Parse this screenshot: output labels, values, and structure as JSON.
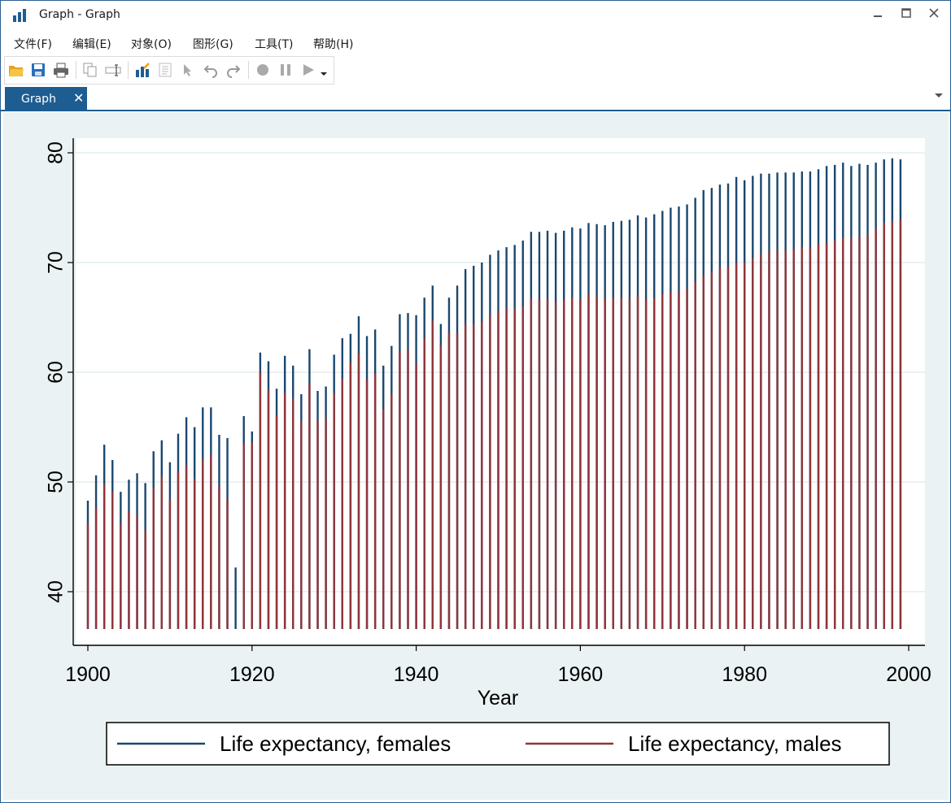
{
  "window": {
    "title": "Graph - Graph",
    "controls": {
      "minimize": "—",
      "maximize": "☐",
      "close": "✕"
    }
  },
  "menu": [
    {
      "label": "文件(F)",
      "name": "menu-file"
    },
    {
      "label": "编辑(E)",
      "name": "menu-edit"
    },
    {
      "label": "对象(O)",
      "name": "menu-object"
    },
    {
      "label": "图形(G)",
      "name": "menu-graph"
    },
    {
      "label": "工具(T)",
      "name": "menu-tools"
    },
    {
      "label": "帮助(H)",
      "name": "menu-help"
    }
  ],
  "toolbar": [
    "open-icon",
    "save-icon",
    "print-icon",
    "copy-icon",
    "rename-icon",
    "graph-editor-icon",
    "properties-icon",
    "pointer-icon",
    "undo-icon",
    "redo-icon",
    "record-icon",
    "pause-icon",
    "play-icon",
    "dropdown-icon"
  ],
  "tab": {
    "label": "Graph",
    "close": "✕"
  },
  "colors": {
    "females": "#1a476f",
    "males": "#90353b",
    "plot_bg": "#ffffff",
    "graph_bg": "#eaf2f3",
    "grid": "#eaf2f3",
    "accent": "#1e5d91"
  },
  "chart_data": {
    "type": "bar",
    "xlabel": "Year",
    "ylabel": "",
    "xlim": [
      1900,
      2000
    ],
    "ylim": [
      36.6,
      80
    ],
    "xticks": [
      1900,
      1920,
      1940,
      1960,
      1980,
      2000
    ],
    "yticks": [
      40,
      50,
      60,
      70,
      80
    ],
    "legend_position": "bottom",
    "baseline": 36.6,
    "x": [
      1900,
      1901,
      1902,
      1903,
      1904,
      1905,
      1906,
      1907,
      1908,
      1909,
      1910,
      1911,
      1912,
      1913,
      1914,
      1915,
      1916,
      1917,
      1918,
      1919,
      1920,
      1921,
      1922,
      1923,
      1924,
      1925,
      1926,
      1927,
      1928,
      1929,
      1930,
      1931,
      1932,
      1933,
      1934,
      1935,
      1936,
      1937,
      1938,
      1939,
      1940,
      1941,
      1942,
      1943,
      1944,
      1945,
      1946,
      1947,
      1948,
      1949,
      1950,
      1951,
      1952,
      1953,
      1954,
      1955,
      1956,
      1957,
      1958,
      1959,
      1960,
      1961,
      1962,
      1963,
      1964,
      1965,
      1966,
      1967,
      1968,
      1969,
      1970,
      1971,
      1972,
      1973,
      1974,
      1975,
      1976,
      1977,
      1978,
      1979,
      1980,
      1981,
      1982,
      1983,
      1984,
      1985,
      1986,
      1987,
      1988,
      1989,
      1990,
      1991,
      1992,
      1993,
      1994,
      1995,
      1996,
      1997,
      1998,
      1999
    ],
    "series": [
      {
        "name": "Life expectancy, females",
        "values": [
          48.3,
          50.6,
          53.4,
          52.0,
          49.1,
          50.2,
          50.8,
          49.9,
          52.8,
          53.8,
          51.8,
          54.4,
          55.9,
          55.0,
          56.8,
          56.8,
          54.3,
          54.0,
          42.2,
          56.0,
          54.6,
          61.8,
          61.0,
          58.5,
          61.5,
          60.6,
          58.0,
          62.1,
          58.3,
          58.7,
          61.6,
          63.1,
          63.5,
          65.1,
          63.3,
          63.9,
          60.6,
          62.4,
          65.3,
          65.4,
          65.2,
          66.8,
          67.9,
          64.4,
          66.8,
          67.9,
          69.4,
          69.7,
          70.0,
          70.7,
          71.1,
          71.4,
          71.6,
          72.0,
          72.8,
          72.8,
          72.9,
          72.7,
          72.9,
          73.2,
          73.1,
          73.6,
          73.5,
          73.4,
          73.7,
          73.8,
          73.9,
          74.3,
          74.1,
          74.4,
          74.7,
          75.0,
          75.1,
          75.3,
          75.9,
          76.6,
          76.8,
          77.1,
          77.2,
          77.8,
          77.5,
          77.9,
          78.1,
          78.1,
          78.2,
          78.2,
          78.2,
          78.3,
          78.3,
          78.5,
          78.8,
          78.9,
          79.1,
          78.8,
          79.0,
          78.9,
          79.1,
          79.4,
          79.5,
          79.4
        ]
      },
      {
        "name": "Life expectancy, males",
        "values": [
          46.3,
          47.6,
          49.8,
          49.1,
          46.2,
          47.3,
          46.9,
          45.6,
          49.5,
          50.5,
          48.4,
          50.9,
          51.5,
          50.3,
          52.0,
          52.5,
          49.6,
          48.4,
          36.6,
          53.5,
          53.6,
          60.0,
          58.4,
          56.1,
          58.1,
          57.6,
          55.5,
          59.0,
          55.6,
          55.8,
          58.1,
          59.4,
          60.9,
          61.7,
          59.3,
          59.9,
          56.6,
          58.0,
          61.9,
          62.1,
          60.8,
          63.1,
          64.7,
          62.5,
          63.6,
          63.6,
          64.4,
          64.4,
          64.6,
          65.2,
          65.6,
          65.9,
          65.8,
          66.0,
          66.7,
          66.7,
          66.7,
          66.4,
          66.6,
          66.8,
          66.6,
          67.1,
          66.9,
          66.6,
          66.8,
          66.8,
          66.7,
          67.0,
          66.6,
          66.8,
          67.1,
          67.4,
          67.4,
          67.6,
          68.2,
          68.8,
          69.1,
          69.5,
          69.6,
          70.0,
          70.0,
          70.4,
          70.8,
          71.0,
          71.1,
          71.1,
          71.2,
          71.4,
          71.4,
          71.7,
          71.8,
          72.0,
          72.3,
          72.2,
          72.4,
          72.5,
          73.1,
          73.6,
          73.8,
          73.9
        ]
      }
    ]
  }
}
